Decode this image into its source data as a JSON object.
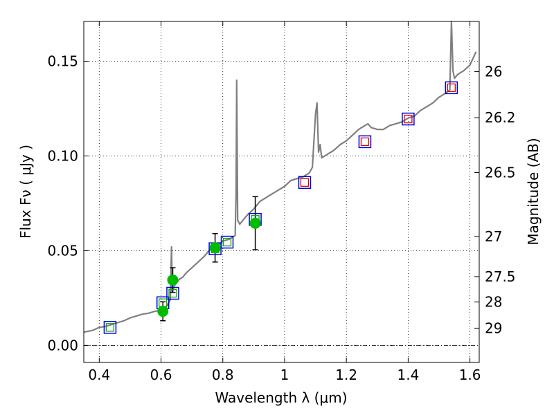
{
  "chart_data": {
    "type": "scatter",
    "title": "",
    "xlabel": "Wavelength  λ (μm)",
    "ylabel": "Flux  Fν  ( μJy )",
    "ylabel_right": "Magnitude (AB)",
    "xlim": [
      0.35,
      1.63
    ],
    "ylim": [
      -0.009,
      0.171
    ],
    "grid": true,
    "x_ticks": [
      0.4,
      0.6,
      0.8,
      1.0,
      1.2,
      1.4,
      1.6
    ],
    "x_tick_labels": [
      "0.4",
      "0.6",
      "0.8",
      "1",
      "1.2",
      "1.4",
      "1.6"
    ],
    "y_ticks": [
      0.0,
      0.05,
      0.1,
      0.15
    ],
    "y_tick_labels": [
      "0.00",
      "0.05",
      "0.10",
      "0.15"
    ],
    "right_ticks": [
      {
        "label": "26",
        "flux": 0.1445
      },
      {
        "label": "26.2",
        "flux": 0.1202
      },
      {
        "label": "26.5",
        "flux": 0.0912
      },
      {
        "label": "27",
        "flux": 0.0575
      },
      {
        "label": "27.5",
        "flux": 0.0363
      },
      {
        "label": "28",
        "flux": 0.0229
      },
      {
        "label": "29",
        "flux": 0.0091
      }
    ],
    "zero_line": 0.0,
    "series": [
      {
        "name": "model spectrum",
        "kind": "line",
        "color": "#808080",
        "x": [
          0.35,
          0.38,
          0.4,
          0.42,
          0.44,
          0.46,
          0.48,
          0.5,
          0.52,
          0.54,
          0.56,
          0.58,
          0.6,
          0.61,
          0.62,
          0.63,
          0.634,
          0.636,
          0.64,
          0.645,
          0.65,
          0.66,
          0.67,
          0.68,
          0.7,
          0.72,
          0.74,
          0.76,
          0.78,
          0.8,
          0.82,
          0.84,
          0.843,
          0.845,
          0.848,
          0.855,
          0.86,
          0.88,
          0.9,
          0.92,
          0.94,
          0.96,
          0.98,
          1.0,
          1.02,
          1.04,
          1.06,
          1.08,
          1.09,
          1.1,
          1.105,
          1.11,
          1.115,
          1.12,
          1.14,
          1.16,
          1.18,
          1.2,
          1.22,
          1.24,
          1.26,
          1.27,
          1.28,
          1.3,
          1.32,
          1.34,
          1.36,
          1.38,
          1.4,
          1.42,
          1.44,
          1.46,
          1.48,
          1.5,
          1.52,
          1.535,
          1.54,
          1.545,
          1.55,
          1.56,
          1.58,
          1.6,
          1.62
        ],
        "y": [
          0.007,
          0.008,
          0.0095,
          0.01,
          0.011,
          0.012,
          0.013,
          0.0145,
          0.0155,
          0.0165,
          0.017,
          0.018,
          0.0185,
          0.019,
          0.021,
          0.024,
          0.052,
          0.028,
          0.03,
          0.032,
          0.033,
          0.035,
          0.036,
          0.038,
          0.041,
          0.044,
          0.047,
          0.051,
          0.052,
          0.055,
          0.056,
          0.058,
          0.08,
          0.14,
          0.066,
          0.064,
          0.065,
          0.069,
          0.072,
          0.076,
          0.078,
          0.08,
          0.082,
          0.084,
          0.087,
          0.088,
          0.089,
          0.091,
          0.094,
          0.122,
          0.128,
          0.102,
          0.106,
          0.099,
          0.101,
          0.103,
          0.106,
          0.108,
          0.111,
          0.114,
          0.116,
          0.117,
          0.115,
          0.114,
          0.114,
          0.116,
          0.117,
          0.118,
          0.12,
          0.121,
          0.124,
          0.126,
          0.128,
          0.131,
          0.133,
          0.135,
          0.171,
          0.145,
          0.141,
          0.143,
          0.145,
          0.148,
          0.155
        ]
      },
      {
        "name": "observed photometry",
        "kind": "points",
        "marker": "circle",
        "color": "#00bb00",
        "error_color": "#000000",
        "x": [
          0.606,
          0.638,
          0.775,
          0.905
        ],
        "y": [
          0.018,
          0.0345,
          0.0515,
          0.0645
        ],
        "yerr": [
          0.005,
          0.0065,
          0.0075,
          0.014
        ]
      },
      {
        "name": "model photometry",
        "kind": "points",
        "marker": "square-outline",
        "color": "#0000dd",
        "x": [
          0.435,
          0.606,
          0.638,
          0.775,
          0.814,
          0.905,
          1.065,
          1.26,
          1.4,
          1.54
        ],
        "y": [
          0.0095,
          0.0225,
          0.0275,
          0.051,
          0.0545,
          0.0665,
          0.086,
          0.1075,
          0.1195,
          0.136
        ]
      },
      {
        "name": "observed photometry (outline)",
        "kind": "points",
        "marker": "square-outline-small",
        "colors": [
          "#00aa00",
          "#00aa00",
          "#00aa00",
          "#00aa00",
          "#00aa00",
          "#00aa00",
          "#dd0000",
          "#dd0000",
          "#dd0000",
          "#dd0000"
        ],
        "x": [
          0.435,
          0.606,
          0.638,
          0.775,
          0.814,
          0.905,
          1.065,
          1.26,
          1.4,
          1.54
        ],
        "y": [
          0.0095,
          0.0225,
          0.0275,
          0.051,
          0.0545,
          0.0665,
          0.086,
          0.1075,
          0.1195,
          0.136
        ]
      }
    ]
  }
}
